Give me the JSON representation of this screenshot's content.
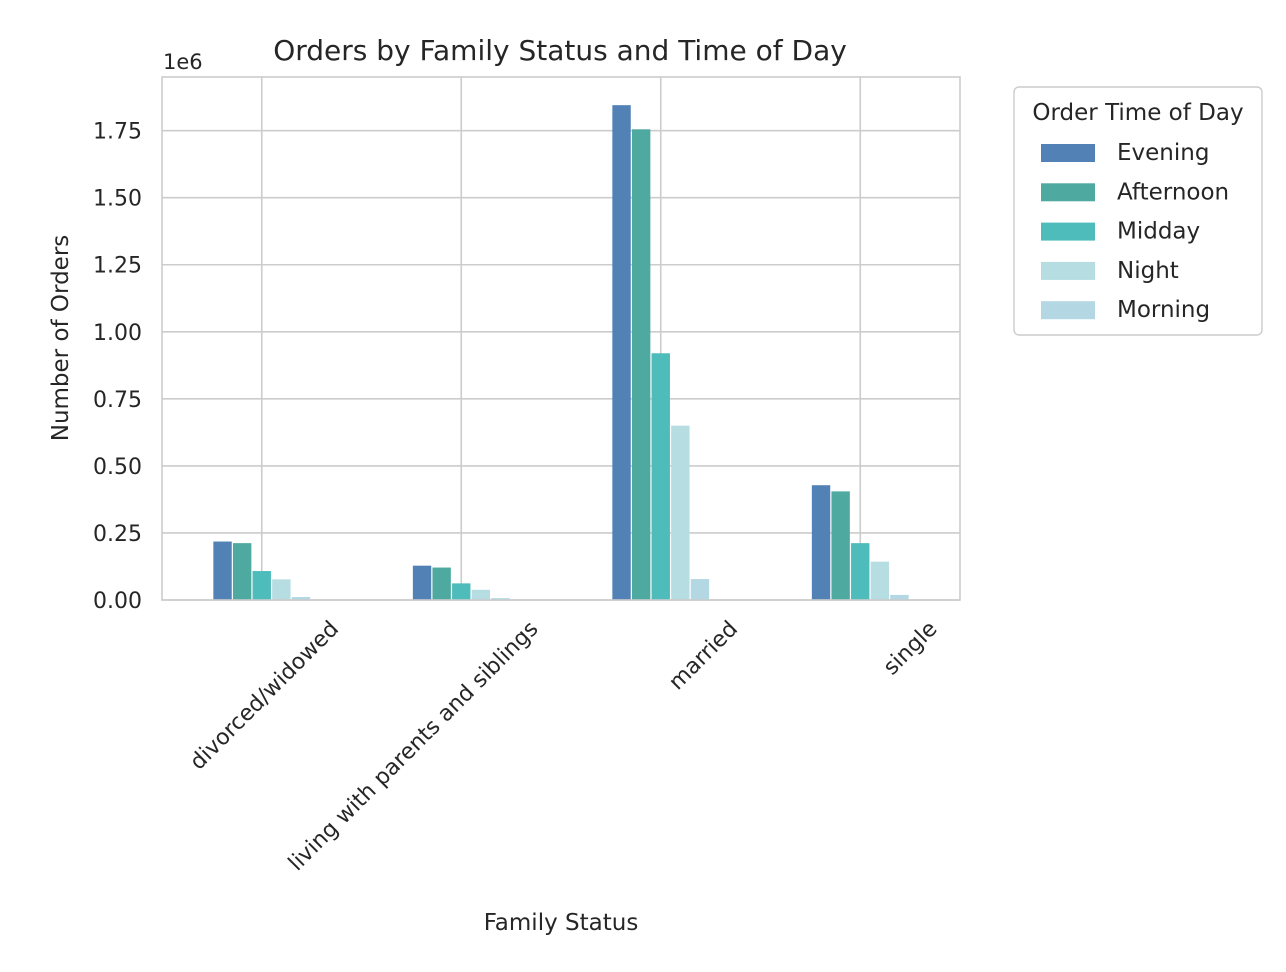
{
  "chart_data": {
    "type": "bar",
    "title": "Orders by Family Status and Time of Day",
    "xlabel": "Family Status",
    "ylabel": "Number of Orders",
    "y_offset_label": "1e6",
    "categories": [
      "divorced/widowed",
      "living with parents and siblings",
      "married",
      "single"
    ],
    "series": [
      {
        "name": "Evening",
        "color": "#5282b5",
        "values": [
          218000,
          128000,
          1845000,
          428000
        ]
      },
      {
        "name": "Afternoon",
        "color": "#4ea9a0",
        "values": [
          212000,
          121000,
          1755000,
          405000
        ]
      },
      {
        "name": "Midday",
        "color": "#4fbcbc",
        "values": [
          108000,
          62000,
          920000,
          212000
        ]
      },
      {
        "name": "Night",
        "color": "#b6dde2",
        "values": [
          77000,
          38000,
          650000,
          143000
        ]
      },
      {
        "name": "Morning",
        "color": "#b3d7e3",
        "values": [
          11000,
          7000,
          78000,
          19000
        ]
      }
    ],
    "ylim": [
      0,
      1950000
    ],
    "yticks": [
      {
        "value": 0,
        "label": "0.00"
      },
      {
        "value": 250000,
        "label": "0.25"
      },
      {
        "value": 500000,
        "label": "0.50"
      },
      {
        "value": 750000,
        "label": "0.75"
      },
      {
        "value": 1000000,
        "label": "1.00"
      },
      {
        "value": 1250000,
        "label": "1.25"
      },
      {
        "value": 1500000,
        "label": "1.50"
      },
      {
        "value": 1750000,
        "label": "1.75"
      }
    ],
    "grid": true,
    "legend": {
      "title": "Order Time of Day",
      "placement": "outside-right"
    }
  }
}
